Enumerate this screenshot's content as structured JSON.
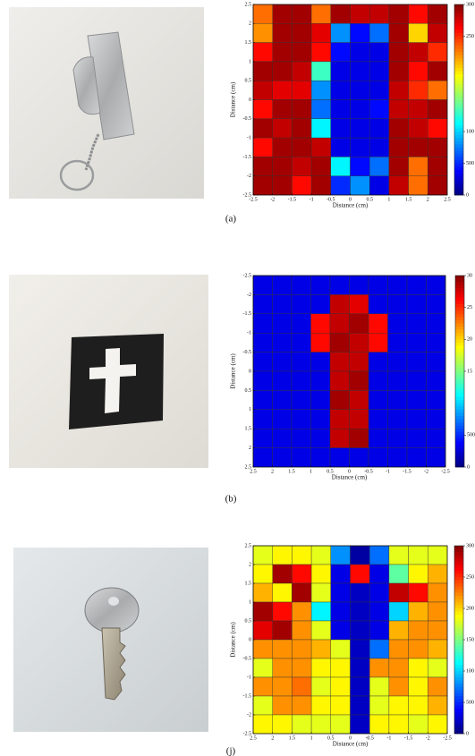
{
  "chart_data": [
    {
      "type": "heatmap",
      "caption": "(a)",
      "x_label": "Distance (cm)",
      "y_label": "Distance (cm)",
      "xlim": [
        -2.5,
        2.5
      ],
      "ylim": [
        -2.5,
        2.5
      ],
      "xticks": [
        -2.5,
        -2,
        -1.5,
        -1,
        -0.5,
        0,
        0.5,
        1,
        1.5,
        2,
        2.5
      ],
      "yticks": [
        -2.5,
        -2,
        -1.5,
        -1,
        -0.5,
        0,
        0.5,
        1,
        1.5,
        2,
        2.5
      ],
      "clim": [
        0,
        3000
      ],
      "colormap": "jet",
      "cticks": [
        {
          "value": 3000,
          "label": "300"
        },
        {
          "value": 2500,
          "label": "250"
        },
        {
          "value": 1000,
          "label": "100"
        },
        500,
        0
      ],
      "values": [
        [
          2300,
          2900,
          2900,
          2300,
          2900,
          2800,
          2800,
          2900,
          2600,
          2900
        ],
        [
          2200,
          2900,
          2900,
          2700,
          800,
          400,
          700,
          2900,
          2000,
          2800
        ],
        [
          2600,
          2900,
          2900,
          2600,
          400,
          300,
          300,
          2900,
          2800,
          2500
        ],
        [
          2900,
          2900,
          2800,
          1300,
          300,
          300,
          300,
          2900,
          2600,
          2900
        ],
        [
          2800,
          2700,
          2700,
          800,
          300,
          300,
          300,
          2800,
          2500,
          2300
        ],
        [
          2600,
          2900,
          2900,
          700,
          300,
          300,
          400,
          2800,
          2800,
          2900
        ],
        [
          2900,
          2800,
          2900,
          1100,
          300,
          300,
          300,
          2900,
          2800,
          2600
        ],
        [
          2600,
          2900,
          2900,
          2800,
          300,
          300,
          300,
          2900,
          2900,
          2900
        ],
        [
          2900,
          2900,
          2800,
          2900,
          1100,
          400,
          700,
          2900,
          2300,
          2900
        ],
        [
          2900,
          2900,
          2600,
          2900,
          500,
          800,
          300,
          2800,
          2300,
          2900
        ]
      ]
    },
    {
      "type": "heatmap",
      "caption": "(b)",
      "x_label": "Distance (cm)",
      "y_label": "Distance (cm)",
      "xlim": [
        2.5,
        -2.5
      ],
      "ylim": [
        2.5,
        -2.5
      ],
      "xticks": [
        2.5,
        2,
        1.5,
        1,
        0.5,
        0,
        -0.5,
        -1,
        -1.5,
        -2,
        -2.5
      ],
      "yticks": [
        2.5,
        2,
        1.5,
        1,
        0.5,
        0,
        -0.5,
        -1,
        -1.5,
        -2,
        -2.5
      ],
      "clim": [
        0,
        3000
      ],
      "colormap": "jet",
      "cticks": [
        {
          "value": 3000,
          "label": "30"
        },
        {
          "value": 2500,
          "label": "25"
        },
        {
          "value": 2000,
          "label": "20"
        },
        {
          "value": 1500,
          "label": "15"
        },
        500,
        0
      ],
      "values": [
        [
          300,
          300,
          300,
          300,
          300,
          300,
          300,
          300,
          300,
          300
        ],
        [
          300,
          300,
          300,
          300,
          2800,
          2700,
          300,
          300,
          300,
          300
        ],
        [
          300,
          300,
          300,
          2600,
          2800,
          2900,
          2600,
          300,
          300,
          300
        ],
        [
          300,
          300,
          300,
          2600,
          2900,
          2800,
          2600,
          300,
          300,
          300
        ],
        [
          300,
          300,
          300,
          300,
          2800,
          2800,
          300,
          300,
          300,
          300
        ],
        [
          300,
          300,
          300,
          300,
          2800,
          2900,
          300,
          300,
          300,
          300
        ],
        [
          300,
          300,
          300,
          300,
          2900,
          2800,
          300,
          300,
          300,
          300
        ],
        [
          300,
          300,
          300,
          300,
          2800,
          2800,
          300,
          300,
          300,
          300
        ],
        [
          300,
          300,
          300,
          300,
          2800,
          2900,
          300,
          300,
          300,
          300
        ],
        [
          300,
          300,
          300,
          300,
          300,
          300,
          300,
          300,
          300,
          300
        ]
      ]
    },
    {
      "type": "heatmap",
      "caption": "(j)",
      "x_label": "Distance (cm)",
      "y_label": "Distance (cm)",
      "xlim": [
        2.5,
        -2.5
      ],
      "ylim": [
        -2.5,
        2.5
      ],
      "xticks": [
        2.5,
        2,
        1.5,
        1,
        0.5,
        0,
        -0.5,
        -1,
        -1.5,
        -2,
        -2.5
      ],
      "yticks": [
        -2.5,
        -2,
        -1.5,
        -1,
        -0.5,
        0,
        0.5,
        1,
        1.5,
        2,
        2.5
      ],
      "clim": [
        0,
        3000
      ],
      "colormap": "jet",
      "cticks": [
        {
          "value": 3000,
          "label": "300"
        },
        {
          "value": 2500,
          "label": "250"
        },
        {
          "value": 2000,
          "label": "200"
        },
        {
          "value": 1500,
          "label": "150"
        },
        {
          "value": 1000,
          "label": "100"
        },
        500,
        0
      ],
      "values": [
        [
          1800,
          1900,
          1900,
          1800,
          800,
          100,
          700,
          1800,
          1800,
          1800
        ],
        [
          1900,
          2900,
          2600,
          1900,
          300,
          2600,
          300,
          1400,
          1900,
          2100
        ],
        [
          2100,
          1900,
          2900,
          1800,
          300,
          200,
          300,
          2800,
          2600,
          2200
        ],
        [
          2900,
          2600,
          2200,
          1100,
          300,
          200,
          300,
          1000,
          2100,
          2200
        ],
        [
          2700,
          2900,
          2200,
          1800,
          300,
          200,
          300,
          2100,
          2200,
          2200
        ],
        [
          2200,
          2200,
          2200,
          2100,
          1800,
          200,
          700,
          2200,
          2200,
          2100
        ],
        [
          1800,
          2200,
          2200,
          1900,
          1900,
          200,
          2200,
          2200,
          1900,
          1800
        ],
        [
          2200,
          2200,
          2300,
          1800,
          1900,
          200,
          1800,
          2200,
          1900,
          2200
        ],
        [
          1800,
          2200,
          2200,
          1900,
          1900,
          200,
          1800,
          1900,
          1900,
          2100
        ],
        [
          1900,
          1900,
          1800,
          1800,
          1800,
          200,
          1900,
          1900,
          1800,
          1900
        ]
      ]
    }
  ]
}
